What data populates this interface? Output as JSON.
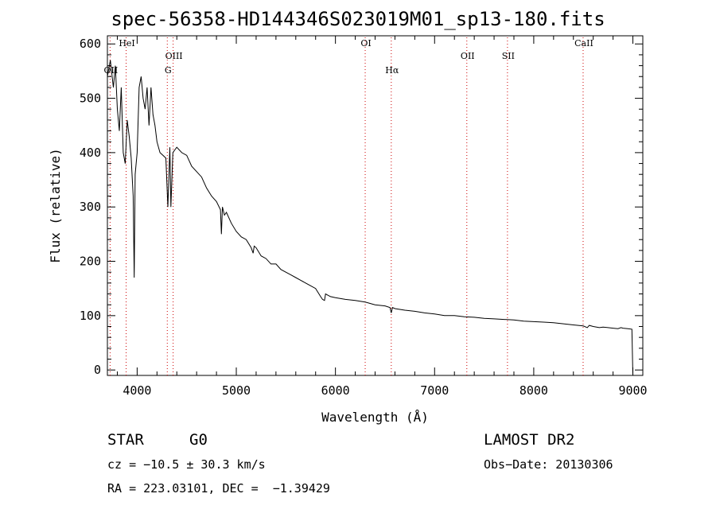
{
  "chart_data": {
    "type": "line",
    "title": "spec-56358-HD144346S023019M01_sp13-180.fits",
    "xlabel": "Wavelength (Å)",
    "ylabel": "Flux (relative)",
    "xlim": [
      3700,
      9100
    ],
    "ylim": [
      -10,
      615
    ],
    "xticks": [
      4000,
      5000,
      6000,
      7000,
      8000,
      9000
    ],
    "yticks": [
      0,
      100,
      200,
      300,
      400,
      500,
      600
    ],
    "grid": false,
    "series": [
      {
        "x": [
          3700,
          3730,
          3760,
          3780,
          3800,
          3820,
          3840,
          3860,
          3880,
          3900,
          3920,
          3940,
          3960,
          3970,
          3980,
          4000,
          4020,
          4040,
          4060,
          4080,
          4100,
          4120,
          4140,
          4160,
          4180,
          4200,
          4230,
          4260,
          4290,
          4310,
          4330,
          4340,
          4360,
          4380,
          4400,
          4450,
          4500,
          4550,
          4600,
          4650,
          4700,
          4750,
          4800,
          4840,
          4850,
          4860,
          4880,
          4900,
          4950,
          5000,
          5050,
          5100,
          5150,
          5170,
          5180,
          5200,
          5250,
          5300,
          5350,
          5400,
          5450,
          5500,
          5550,
          5600,
          5650,
          5700,
          5750,
          5800,
          5850,
          5870,
          5890,
          5900,
          5950,
          6000,
          6100,
          6200,
          6300,
          6400,
          6500,
          6550,
          6563,
          6575,
          6600,
          6700,
          6800,
          6900,
          7000,
          7100,
          7200,
          7300,
          7400,
          7500,
          7600,
          7700,
          7800,
          7900,
          8000,
          8100,
          8200,
          8300,
          8400,
          8500,
          8540,
          8560,
          8600,
          8662,
          8700,
          8800,
          8850,
          8880,
          8900,
          8950,
          8990,
          9000
        ],
        "y": [
          540,
          570,
          520,
          560,
          480,
          440,
          520,
          400,
          380,
          460,
          430,
          390,
          320,
          170,
          360,
          400,
          520,
          540,
          500,
          480,
          520,
          450,
          520,
          470,
          450,
          420,
          400,
          395,
          390,
          300,
          410,
          300,
          400,
          405,
          410,
          400,
          395,
          375,
          365,
          355,
          335,
          320,
          310,
          295,
          250,
          300,
          285,
          290,
          270,
          255,
          245,
          240,
          225,
          215,
          228,
          225,
          210,
          205,
          195,
          195,
          185,
          180,
          175,
          170,
          165,
          160,
          155,
          150,
          135,
          130,
          128,
          140,
          135,
          133,
          130,
          128,
          125,
          120,
          118,
          115,
          105,
          115,
          113,
          110,
          108,
          105,
          103,
          100,
          100,
          98,
          97,
          95,
          94,
          93,
          92,
          90,
          89,
          88,
          87,
          85,
          83,
          81,
          78,
          82,
          80,
          78,
          79,
          77,
          76,
          78,
          77,
          76,
          75,
          -10
        ]
      }
    ],
    "lines": [
      {
        "label": "OII",
        "x": 3727
      },
      {
        "label": "HeI",
        "x": 3889
      },
      {
        "label": "OIII",
        "x": 4363
      },
      {
        "label": "G",
        "x": 4304
      },
      {
        "label": "OI",
        "x": 6300
      },
      {
        "label": "Hα",
        "x": 6563
      },
      {
        "label": "OII",
        "x": 7325
      },
      {
        "label": "SII",
        "x": 7735
      },
      {
        "label": "CaII",
        "x": 8498
      }
    ]
  },
  "info": {
    "obj_class": "STAR",
    "subclass": "G0",
    "cz": "cz = −10.5 ± 30.3 km/s",
    "radec": "RA = 223.03101, DEC =  −1.39429",
    "survey": "LAMOST DR2",
    "obs_date": "Obs−Date: 20130306"
  }
}
